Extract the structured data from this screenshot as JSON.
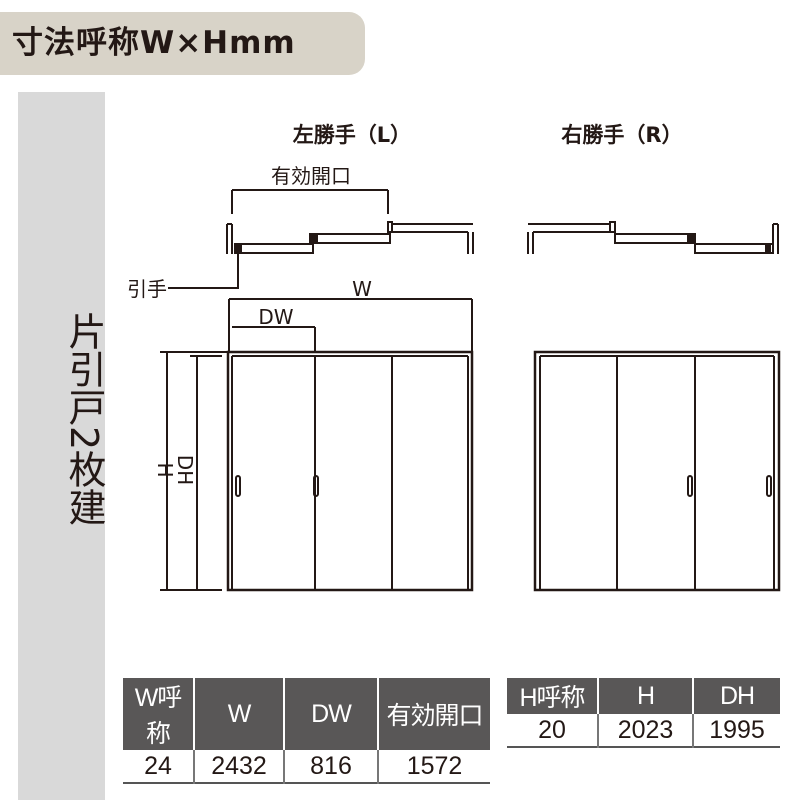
{
  "title": "寸法呼称W×Hmm",
  "side_label": "片引戸2枚建",
  "diagram": {
    "left_title": "左勝手（L）",
    "right_title": "右勝手（R）",
    "effective_opening_label": "有効開口",
    "handle_label": "引手",
    "w_label": "W",
    "dw_label": "DW",
    "h_label": "H",
    "dh_label": "DH"
  },
  "width_table": {
    "headers": [
      "W呼称",
      "W",
      "DW",
      "有効開口"
    ],
    "values": [
      "24",
      "2432",
      "816",
      "1572"
    ]
  },
  "height_table": {
    "headers": [
      "H呼称",
      "H",
      "DH"
    ],
    "values": [
      "20",
      "2023",
      "1995"
    ]
  }
}
